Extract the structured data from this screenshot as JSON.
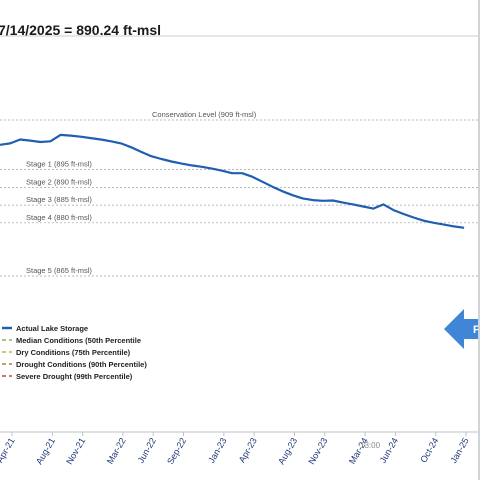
{
  "title": "7/14/2025 = 890.24 ft-msl",
  "timestamp_overlay": "13:00",
  "chart_data": {
    "type": "line",
    "xlabel": "",
    "ylabel": "",
    "y_unit": "ft-msl",
    "x_ticks": [
      "Apr-21",
      "Aug-21",
      "Nov-21",
      "Mar-22",
      "Jun-22",
      "Sep-22",
      "Jan-23",
      "Apr-23",
      "Aug-23",
      "Nov-23",
      "Mar-24",
      "Jun-24",
      "Oct-24",
      "Jan-25"
    ],
    "reference_lines": [
      {
        "label": "Conservation Level (909 ft-msl)",
        "value": 909,
        "color": "#9aa3ad"
      },
      {
        "label": "Stage 1 (895 ft-msl)",
        "value": 895,
        "color": "#9aa3ad"
      },
      {
        "label": "Stage 2 (890 ft-msl)",
        "value": 890,
        "color": "#9aa3ad"
      },
      {
        "label": "Stage 3 (885 ft-msl)",
        "value": 885,
        "color": "#9aa3ad"
      },
      {
        "label": "Stage 4 (880 ft-msl)",
        "value": 880,
        "color": "#9aa3ad"
      },
      {
        "label": "Stage 5 (865 ft-msl)",
        "value": 865,
        "color": "#9aa3ad"
      }
    ],
    "series": [
      {
        "name": "Actual Lake Storage",
        "color": "#1f5fb0",
        "points": [
          [
            "Apr-21",
            902.0
          ],
          [
            "May-21",
            902.4
          ],
          [
            "Jun-21",
            903.5
          ],
          [
            "Jul-21",
            903.2
          ],
          [
            "Aug-21",
            902.8
          ],
          [
            "Sep-21",
            903.0
          ],
          [
            "Oct-21",
            904.8
          ],
          [
            "Nov-21",
            904.6
          ],
          [
            "Dec-21",
            904.3
          ],
          [
            "Jan-22",
            903.9
          ],
          [
            "Feb-22",
            903.5
          ],
          [
            "Mar-22",
            903.0
          ],
          [
            "Apr-22",
            902.4
          ],
          [
            "May-22",
            901.3
          ],
          [
            "Jun-22",
            900.0
          ],
          [
            "Jul-22",
            898.8
          ],
          [
            "Aug-22",
            898.0
          ],
          [
            "Sep-22",
            897.3
          ],
          [
            "Oct-22",
            896.7
          ],
          [
            "Nov-22",
            896.2
          ],
          [
            "Dec-22",
            895.8
          ],
          [
            "Jan-23",
            895.3
          ],
          [
            "Feb-23",
            894.7
          ],
          [
            "Mar-23",
            894.0
          ],
          [
            "Apr-23",
            894.0
          ],
          [
            "May-23",
            893.0
          ],
          [
            "Jun-23",
            891.6
          ],
          [
            "Jul-23",
            890.2
          ],
          [
            "Aug-23",
            888.9
          ],
          [
            "Sep-23",
            887.8
          ],
          [
            "Oct-23",
            886.9
          ],
          [
            "Nov-23",
            886.4
          ],
          [
            "Dec-23",
            886.2
          ],
          [
            "Jan-24",
            886.3
          ],
          [
            "Feb-24",
            885.7
          ],
          [
            "Mar-24",
            885.2
          ],
          [
            "Apr-24",
            884.6
          ],
          [
            "May-24",
            884.0
          ],
          [
            "Jun-24",
            885.2
          ],
          [
            "Jul-24",
            883.6
          ],
          [
            "Aug-24",
            882.5
          ],
          [
            "Sep-24",
            881.5
          ],
          [
            "Oct-24",
            880.6
          ],
          [
            "Nov-24",
            880.0
          ],
          [
            "Dec-24",
            879.5
          ],
          [
            "Jan-25",
            879.0
          ],
          [
            "Feb-25",
            878.6
          ]
        ]
      },
      {
        "name": "Median Conditions (50th Percentile",
        "color": "#8fae4c",
        "dash": "4,3",
        "points": []
      },
      {
        "name": "Dry Conditions (75th Percentile)",
        "color": "#c9b24a",
        "dash": "4,3",
        "points": []
      },
      {
        "name": "Drought Conditions (90th Percentile)",
        "color": "#b07a3a",
        "dash": "4,3",
        "points": []
      },
      {
        "name": "Severe Drought (99th Percentile)",
        "color": "#b04a4a",
        "dash": "4,3",
        "points": []
      }
    ],
    "legend": "bottom-left",
    "grid": false
  },
  "nav_button": {
    "label": "P",
    "icon": "arrow-left-icon",
    "color": "#3f86d6"
  }
}
